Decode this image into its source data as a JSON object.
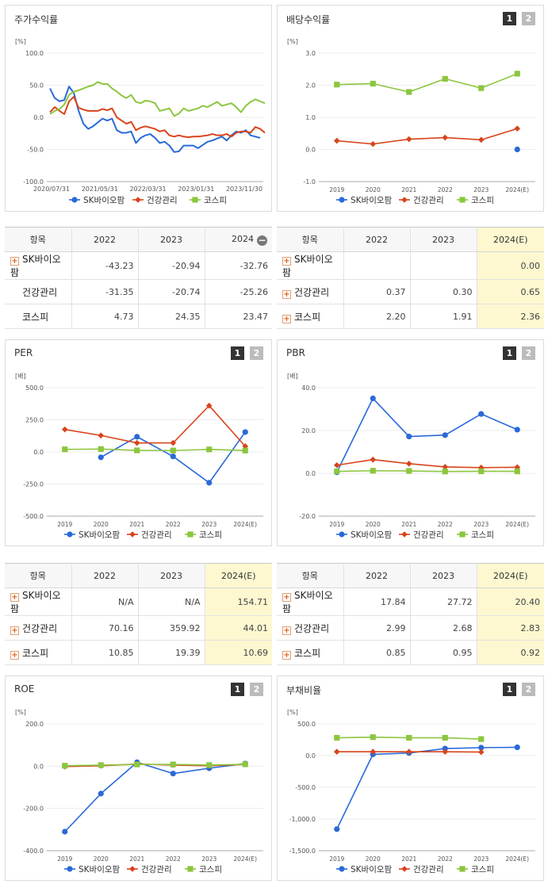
{
  "colors": {
    "sk": "#2a69d8",
    "health": "#d8441c",
    "kospi": "#8cc63f"
  },
  "legend": [
    "SK바이오팜",
    "건강관리",
    "코스피"
  ],
  "row_names": [
    "SK바이오팜",
    "건강관리",
    "코스피"
  ],
  "panels": {
    "price": {
      "title": "주가수익률"
    },
    "div": {
      "title": "배당수익률",
      "btn1": "1",
      "btn2": "2"
    },
    "per": {
      "title": "PER",
      "btn1": "1",
      "btn2": "2"
    },
    "pbr": {
      "title": "PBR",
      "btn1": "1",
      "btn2": "2"
    },
    "roe": {
      "title": "ROE",
      "btn1": "1",
      "btn2": "2"
    },
    "debt": {
      "title": "부채비율",
      "btn1": "1",
      "btn2": "2"
    }
  },
  "tables": {
    "price": {
      "header": [
        "항목",
        "2022",
        "2023",
        "2024"
      ],
      "collapse_icon": "−",
      "rows": [
        [
          "-43.23",
          "-20.94",
          "-32.76"
        ],
        [
          "-31.35",
          "-20.74",
          "-25.26"
        ],
        [
          "4.73",
          "24.35",
          "23.47"
        ]
      ]
    },
    "div": {
      "header": [
        "항목",
        "2022",
        "2023",
        "2024(E)"
      ],
      "rows": [
        [
          "",
          "",
          "0.00"
        ],
        [
          "0.37",
          "0.30",
          "0.65"
        ],
        [
          "2.20",
          "1.91",
          "2.36"
        ]
      ]
    },
    "per": {
      "header": [
        "항목",
        "2022",
        "2023",
        "2024(E)"
      ],
      "rows": [
        [
          "N/A",
          "N/A",
          "154.71"
        ],
        [
          "70.16",
          "359.92",
          "44.01"
        ],
        [
          "10.85",
          "19.39",
          "10.69"
        ]
      ]
    },
    "pbr": {
      "header": [
        "항목",
        "2022",
        "2023",
        "2024(E)"
      ],
      "rows": [
        [
          "17.84",
          "27.72",
          "20.40"
        ],
        [
          "2.99",
          "2.68",
          "2.83"
        ],
        [
          "0.85",
          "0.95",
          "0.92"
        ]
      ]
    }
  },
  "chart_data": [
    {
      "id": "price",
      "type": "line",
      "title": "주가수익률",
      "ylabel": "[%]",
      "ylim": [
        -100,
        100
      ],
      "yticks": [
        "100.0",
        "50.0",
        "0.0",
        "-50.0",
        "-100.0"
      ],
      "xticks": [
        "2020/07/31",
        "2021/05/31",
        "2022/03/31",
        "2023/01/31",
        "2023/11/30"
      ],
      "series": [
        {
          "name": "SK바이오팜",
          "values": [
            45,
            30,
            25,
            27,
            48,
            38,
            10,
            -10,
            -18,
            -14,
            -8,
            -2,
            -5,
            -2,
            -20,
            -24,
            -24,
            -22,
            -40,
            -32,
            -28,
            -26,
            -32,
            -40,
            -38,
            -44,
            -54,
            -53,
            -44,
            -44,
            -44,
            -48,
            -43,
            -38,
            -36,
            -33,
            -30,
            -36,
            -28,
            -22,
            -24,
            -20,
            -28,
            -30,
            -32
          ]
        },
        {
          "name": "건강관리",
          "values": [
            8,
            16,
            10,
            5,
            25,
            32,
            15,
            12,
            10,
            10,
            10,
            13,
            11,
            14,
            0,
            -5,
            -10,
            -7,
            -20,
            -16,
            -14,
            -16,
            -18,
            -22,
            -20,
            -28,
            -30,
            -28,
            -30,
            -31,
            -30,
            -30,
            -29,
            -28,
            -26,
            -28,
            -28,
            -26,
            -30,
            -24,
            -22,
            -22,
            -24,
            -15,
            -18,
            -24
          ]
        },
        {
          "name": "코스피",
          "values": [
            5,
            10,
            13,
            20,
            35,
            40,
            42,
            45,
            48,
            50,
            55,
            52,
            52,
            45,
            40,
            34,
            30,
            35,
            24,
            22,
            26,
            25,
            22,
            10,
            12,
            14,
            2,
            6,
            14,
            10,
            12,
            14,
            18,
            16,
            20,
            24,
            18,
            20,
            22,
            16,
            8,
            18,
            24,
            28,
            25,
            22
          ]
        }
      ]
    },
    {
      "id": "div",
      "type": "line",
      "title": "배당수익률",
      "ylabel": "[%]",
      "ylim": [
        -1,
        3
      ],
      "yticks": [
        "3.0",
        "2.0",
        "1.0",
        "0.0",
        "-1.0"
      ],
      "categories": [
        "2019",
        "2020",
        "2021",
        "2022",
        "2023",
        "2024(E)"
      ],
      "series": [
        {
          "name": "SK바이오팜",
          "values": [
            null,
            null,
            null,
            null,
            null,
            0.0
          ]
        },
        {
          "name": "건강관리",
          "values": [
            0.27,
            0.17,
            0.32,
            0.37,
            0.3,
            0.65
          ]
        },
        {
          "name": "코스피",
          "values": [
            2.02,
            2.05,
            1.79,
            2.2,
            1.91,
            2.36
          ]
        }
      ]
    },
    {
      "id": "per",
      "type": "line",
      "title": "PER",
      "ylabel": "[배]",
      "ylim": [
        -500,
        500
      ],
      "yticks": [
        "500.0",
        "250.0",
        "0.0",
        "-250.0",
        "-500.0"
      ],
      "categories": [
        "2019",
        "2020",
        "2021",
        "2022",
        "2023",
        "2024(E)"
      ],
      "series": [
        {
          "name": "SK바이오팜",
          "values": [
            null,
            -42,
            118,
            -35,
            -240,
            154.71
          ]
        },
        {
          "name": "건강관리",
          "values": [
            175,
            128,
            70,
            70.16,
            359.92,
            44.01
          ]
        },
        {
          "name": "코스피",
          "values": [
            20,
            22,
            12,
            10.85,
            19.39,
            10.69
          ]
        }
      ]
    },
    {
      "id": "pbr",
      "type": "line",
      "title": "PBR",
      "ylabel": "[배]",
      "ylim": [
        -20,
        40
      ],
      "yticks": [
        "40.0",
        "20.0",
        "0.0",
        "-20.0"
      ],
      "categories": [
        "2019",
        "2020",
        "2021",
        "2022",
        "2023",
        "2024(E)"
      ],
      "series": [
        {
          "name": "SK바이오팜",
          "values": [
            0.5,
            35.0,
            17.2,
            17.84,
            27.72,
            20.4
          ]
        },
        {
          "name": "건강관리",
          "values": [
            3.8,
            6.4,
            4.5,
            2.99,
            2.68,
            2.83
          ]
        },
        {
          "name": "코스피",
          "values": [
            0.9,
            1.2,
            1.1,
            0.85,
            0.95,
            0.92
          ]
        }
      ]
    },
    {
      "id": "roe",
      "type": "line",
      "title": "ROE",
      "ylabel": "[%]",
      "ylim": [
        -400,
        200
      ],
      "yticks": [
        "200.0",
        "0.0",
        "-200.0",
        "-400.0"
      ],
      "categories": [
        "2019",
        "2020",
        "2021",
        "2022",
        "2023",
        "2024(E)"
      ],
      "series": [
        {
          "name": "SK바이오팜",
          "values": [
            -310,
            -130,
            18,
            -35,
            -10,
            12
          ]
        },
        {
          "name": "건강관리",
          "values": [
            -2,
            2,
            10,
            5,
            2,
            8
          ]
        },
        {
          "name": "코스피",
          "values": [
            2,
            5,
            8,
            8,
            5,
            9
          ]
        }
      ]
    },
    {
      "id": "debt",
      "type": "line",
      "title": "부채비율",
      "ylabel": "[%]",
      "ylim": [
        -1500,
        500
      ],
      "yticks": [
        "500.0",
        "0.0",
        "-500.0",
        "-1,000.0",
        "-1,500.0"
      ],
      "categories": [
        "2019",
        "2020",
        "2021",
        "2022",
        "2023",
        "2024(E)"
      ],
      "series": [
        {
          "name": "SK바이오팜",
          "values": [
            -1160,
            20,
            40,
            110,
            125,
            130
          ]
        },
        {
          "name": "건강관리",
          "values": [
            60,
            60,
            60,
            60,
            55,
            null
          ]
        },
        {
          "name": "코스피",
          "values": [
            280,
            290,
            280,
            280,
            260,
            null
          ]
        }
      ]
    }
  ]
}
